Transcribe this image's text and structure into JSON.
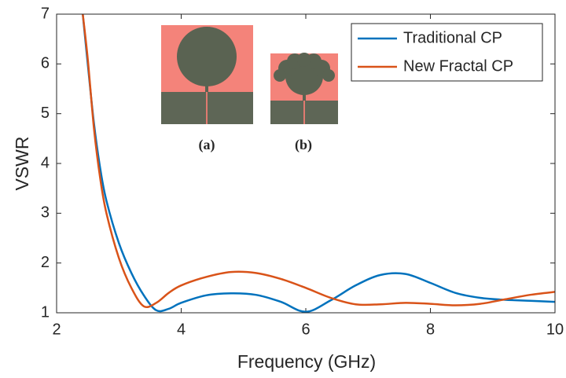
{
  "chart_data": {
    "type": "line",
    "xlabel": "Frequency (GHz)",
    "ylabel": "VSWR",
    "x": [
      2.42,
      2.5,
      2.6,
      2.7,
      2.8,
      3.0,
      3.2,
      3.4,
      3.6,
      3.8,
      4.0,
      4.4,
      4.8,
      5.2,
      5.6,
      6.0,
      6.4,
      6.8,
      7.2,
      7.6,
      8.0,
      8.4,
      8.8,
      9.2,
      9.6,
      10.0
    ],
    "series": [
      {
        "name": "Traditional CP",
        "color": "#0072bd",
        "values": [
          7,
          6.0,
          4.8,
          3.9,
          3.25,
          2.4,
          1.8,
          1.35,
          1.05,
          1.08,
          1.2,
          1.35,
          1.39,
          1.36,
          1.22,
          1.02,
          1.25,
          1.55,
          1.76,
          1.78,
          1.6,
          1.4,
          1.3,
          1.26,
          1.24,
          1.22
        ]
      },
      {
        "name": "New Fractal CP",
        "color": "#d95319",
        "values": [
          7,
          6.1,
          4.7,
          3.7,
          3.0,
          2.1,
          1.5,
          1.13,
          1.2,
          1.4,
          1.55,
          1.72,
          1.82,
          1.8,
          1.68,
          1.5,
          1.3,
          1.17,
          1.17,
          1.2,
          1.18,
          1.15,
          1.18,
          1.27,
          1.36,
          1.42
        ]
      }
    ],
    "annotations": [
      "(a)",
      "(b)"
    ],
    "xlim": [
      2,
      10
    ],
    "xticks": [
      2,
      4,
      6,
      8,
      10
    ],
    "ylim": [
      1,
      7
    ],
    "yticks": [
      1,
      2,
      3,
      4,
      5,
      6,
      7
    ],
    "grid": false,
    "legend": "upper right"
  }
}
